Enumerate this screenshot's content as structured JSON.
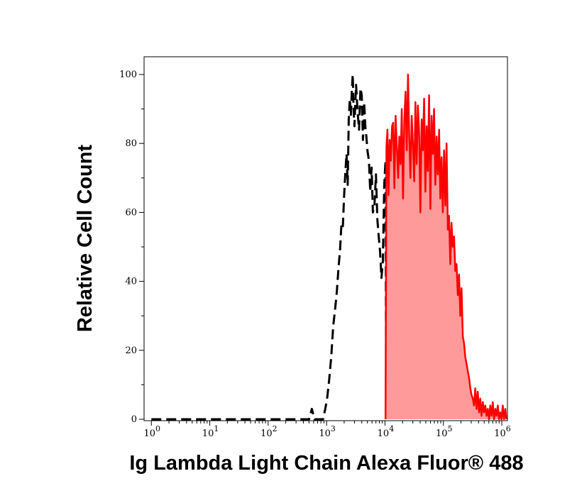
{
  "chart_data": {
    "type": "area",
    "title": "",
    "xlabel": "Ig Lambda Light Chain Alexa Fluor® 488",
    "ylabel": "Relative Cell Count",
    "xscale": "log",
    "xlim": [
      0.75,
      1250000
    ],
    "ylim": [
      -1,
      100
    ],
    "grid": false,
    "legend": "none",
    "x_ticks": [
      {
        "base": "10",
        "exp": "0",
        "value": 1
      },
      {
        "base": "10",
        "exp": "1",
        "value": 10
      },
      {
        "base": "10",
        "exp": "2",
        "value": 100
      },
      {
        "base": "10",
        "exp": "3",
        "value": 1000
      },
      {
        "base": "10",
        "exp": "4",
        "value": 10000
      },
      {
        "base": "10",
        "exp": "5",
        "value": 100000
      },
      {
        "base": "10",
        "exp": "6",
        "value": 1000000
      }
    ],
    "y_ticks": [
      {
        "label": "0",
        "value": 0
      },
      {
        "label": "20",
        "value": 20
      },
      {
        "label": "40",
        "value": 40
      },
      {
        "label": "60",
        "value": 60
      },
      {
        "label": "80",
        "value": 80
      },
      {
        "label": "100",
        "value": 100
      }
    ],
    "series": [
      {
        "style": "dashed",
        "color": "#000000",
        "fill": "none",
        "x": [
          1,
          100,
          400,
          500,
          560,
          620,
          700,
          800,
          870,
          950,
          1020,
          1100,
          1200,
          1300,
          1400,
          1500,
          1600,
          1700,
          1800,
          1900,
          2000,
          2100,
          2200,
          2300,
          2400,
          2500,
          2600,
          2700,
          2800,
          2900,
          3000,
          3200,
          3400,
          3600,
          3800,
          4000,
          4200,
          4400,
          4600,
          4800,
          5000,
          5300,
          5600,
          5900,
          6200,
          6600,
          7000,
          7400,
          7800,
          8200,
          8700,
          9200,
          9700,
          10200,
          10400,
          10600
        ],
        "y": [
          0,
          0,
          0,
          0,
          3,
          0,
          0,
          0,
          0,
          3,
          6,
          11,
          18,
          27,
          32,
          37,
          44,
          49,
          57,
          56,
          65,
          72,
          77,
          68,
          87,
          93,
          88,
          95,
          100,
          90,
          85,
          97,
          89,
          84,
          96,
          94,
          81,
          92,
          85,
          82,
          78,
          75,
          66,
          73,
          60,
          62,
          71,
          58,
          53,
          49,
          41,
          46,
          68,
          75,
          30,
          0
        ]
      },
      {
        "style": "solid",
        "color": "#ff0000",
        "fill": "#ff9a9a",
        "x": [
          10200,
          10600,
          11000,
          11500,
          12000,
          12600,
          13200,
          13800,
          14500,
          15200,
          16000,
          16800,
          17600,
          18500,
          19400,
          20400,
          21400,
          22500,
          23600,
          24800,
          26000,
          27300,
          28700,
          30100,
          31600,
          33200,
          34900,
          36600,
          38500,
          40400,
          42400,
          44600,
          46800,
          49200,
          51600,
          54200,
          56900,
          59800,
          62800,
          66000,
          69300,
          72800,
          76500,
          80300,
          84400,
          88600,
          93100,
          97800,
          102700,
          107900,
          113400,
          119100,
          125100,
          131400,
          138000,
          145000,
          152300,
          160000,
          168100,
          176600,
          185500,
          194900,
          204700,
          215000,
          225900,
          237300,
          249300,
          261900,
          275100,
          289000,
          303600,
          318900,
          335000,
          351900,
          369700,
          388300,
          407900,
          428500,
          450200,
          472900,
          496800,
          521900,
          548200,
          575900,
          605000,
          635500,
          667600,
          701300,
          736800,
          774000,
          813100,
          854100,
          897200,
          942500,
          990100,
          1040100,
          1092600,
          1147800,
          1200000
        ],
        "y": [
          0,
          79,
          84,
          65,
          81,
          75,
          85,
          86,
          67,
          88,
          79,
          70,
          82,
          74,
          90,
          64,
          86,
          95,
          78,
          100,
          82,
          70,
          88,
          80,
          69,
          92,
          74,
          91,
          83,
          60,
          87,
          78,
          93,
          66,
          85,
          72,
          94,
          61,
          88,
          77,
          90,
          68,
          82,
          71,
          84,
          64,
          76,
          60,
          78,
          62,
          80,
          55,
          59,
          45,
          57,
          50,
          53,
          43,
          45,
          36,
          42,
          30,
          38,
          24,
          22,
          18,
          16,
          14,
          12,
          9,
          7,
          6,
          4,
          9,
          3,
          8,
          2,
          6,
          1,
          5,
          2,
          4,
          1,
          3,
          0,
          4,
          1,
          5,
          0,
          3,
          1,
          4,
          0,
          2,
          0,
          4,
          0,
          3,
          0
        ]
      }
    ]
  }
}
